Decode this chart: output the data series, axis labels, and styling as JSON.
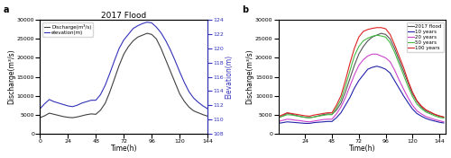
{
  "title_a": "2017 Flood",
  "xlabel": "Time(h)",
  "ylabel_left": "Discharge(m³/s)",
  "ylabel_right": "Elevation(m)",
  "ylabel_b": "Discharge(m³/s)",
  "xlabel_b": "Time(h)",
  "label_a": "a",
  "label_b": "b",
  "discharge_color": "#404040",
  "elevation_color": "#3333bb",
  "colors_b": {
    "2017 flood": "#555555",
    "10 years": "#2222aa",
    "20 years": "#cc44cc",
    "50 years": "#44bb44",
    "100 years": "#dd2222"
  },
  "xlim_a": [
    0,
    144
  ],
  "xticks_a": [
    0,
    24,
    48,
    72,
    96,
    120,
    144
  ],
  "ylim_left": [
    0,
    30000
  ],
  "yticks_left": [
    0,
    5000,
    10000,
    15000,
    20000,
    25000,
    30000
  ],
  "ylim_right": [
    108,
    124
  ],
  "yticks_right": [
    108,
    110,
    112,
    114,
    116,
    118,
    120,
    122,
    124
  ],
  "xlim_b": [
    0,
    150
  ],
  "xticks_b": [
    24,
    48,
    72,
    96,
    120,
    144
  ],
  "ylim_b": [
    0,
    30000
  ],
  "yticks_b": [
    0,
    5000,
    10000,
    15000,
    20000,
    25000,
    30000
  ],
  "time_a": [
    0,
    4,
    8,
    12,
    16,
    20,
    24,
    28,
    32,
    36,
    40,
    44,
    48,
    52,
    56,
    60,
    64,
    68,
    72,
    76,
    80,
    84,
    88,
    92,
    96,
    100,
    104,
    108,
    112,
    116,
    120,
    124,
    128,
    132,
    136,
    140,
    144
  ],
  "discharge_a": [
    4200,
    4700,
    5400,
    5100,
    4800,
    4500,
    4300,
    4200,
    4400,
    4700,
    5000,
    5200,
    5100,
    6200,
    8000,
    11000,
    14500,
    18000,
    21000,
    23000,
    24500,
    25500,
    26000,
    26500,
    26200,
    25000,
    22500,
    19500,
    16500,
    13500,
    10500,
    8500,
    7000,
    6000,
    5500,
    5000,
    4600
  ],
  "elevation_a": [
    111.5,
    112.2,
    112.8,
    112.5,
    112.3,
    112.1,
    111.9,
    111.8,
    112.0,
    112.3,
    112.5,
    112.7,
    112.7,
    113.5,
    114.8,
    116.5,
    118.3,
    120.0,
    121.2,
    122.0,
    122.8,
    123.2,
    123.5,
    123.7,
    123.6,
    123.0,
    122.2,
    121.1,
    119.8,
    118.3,
    116.7,
    115.2,
    113.9,
    113.0,
    112.4,
    111.9,
    111.5
  ],
  "time_b": [
    0,
    4,
    8,
    12,
    16,
    20,
    24,
    28,
    32,
    36,
    40,
    44,
    48,
    52,
    56,
    60,
    64,
    68,
    72,
    76,
    80,
    84,
    88,
    92,
    96,
    100,
    104,
    108,
    112,
    116,
    120,
    124,
    128,
    132,
    136,
    140,
    144,
    148
  ],
  "flood2017_b": [
    4200,
    4700,
    5400,
    5100,
    4800,
    4500,
    4300,
    4200,
    4400,
    4700,
    5000,
    5200,
    5100,
    6200,
    8000,
    11000,
    14500,
    18000,
    21000,
    23000,
    24500,
    25500,
    26000,
    26500,
    26200,
    25000,
    22500,
    19500,
    16500,
    13500,
    10500,
    8500,
    7000,
    6000,
    5500,
    5000,
    4600,
    4300
  ],
  "yr10_b": [
    2700,
    2900,
    3100,
    3000,
    2900,
    2800,
    2700,
    2700,
    2900,
    3000,
    3100,
    3200,
    3200,
    4200,
    5500,
    7500,
    9500,
    12000,
    14000,
    15500,
    17000,
    17500,
    17800,
    17500,
    17000,
    16000,
    14000,
    12000,
    10000,
    8200,
    6500,
    5300,
    4600,
    4000,
    3600,
    3300,
    3000,
    2800
  ],
  "yr20_b": [
    3200,
    3500,
    3800,
    3700,
    3500,
    3400,
    3200,
    3100,
    3300,
    3500,
    3700,
    3800,
    3800,
    5200,
    7000,
    9500,
    12500,
    15500,
    18000,
    19500,
    20500,
    21000,
    21000,
    20500,
    20000,
    19000,
    16800,
    14200,
    11800,
    9500,
    7500,
    6000,
    5200,
    4500,
    4100,
    3700,
    3400,
    3100
  ],
  "yr50_b": [
    4200,
    4600,
    5000,
    4900,
    4700,
    4500,
    4300,
    4200,
    4400,
    4600,
    4800,
    5000,
    5000,
    6800,
    9000,
    12500,
    16500,
    20500,
    23000,
    24500,
    25200,
    25700,
    26000,
    25800,
    25500,
    24000,
    21500,
    18500,
    15500,
    12500,
    9800,
    7800,
    6600,
    5700,
    5200,
    4700,
    4300,
    4100
  ],
  "yr100_b": [
    4500,
    5000,
    5500,
    5300,
    5100,
    4900,
    4700,
    4600,
    4900,
    5100,
    5300,
    5500,
    5500,
    7500,
    10000,
    14000,
    18500,
    22500,
    25500,
    27000,
    27500,
    27800,
    28000,
    28000,
    27700,
    26200,
    23500,
    20500,
    17500,
    14000,
    11000,
    8700,
    7300,
    6300,
    5700,
    5100,
    4700,
    4400
  ]
}
